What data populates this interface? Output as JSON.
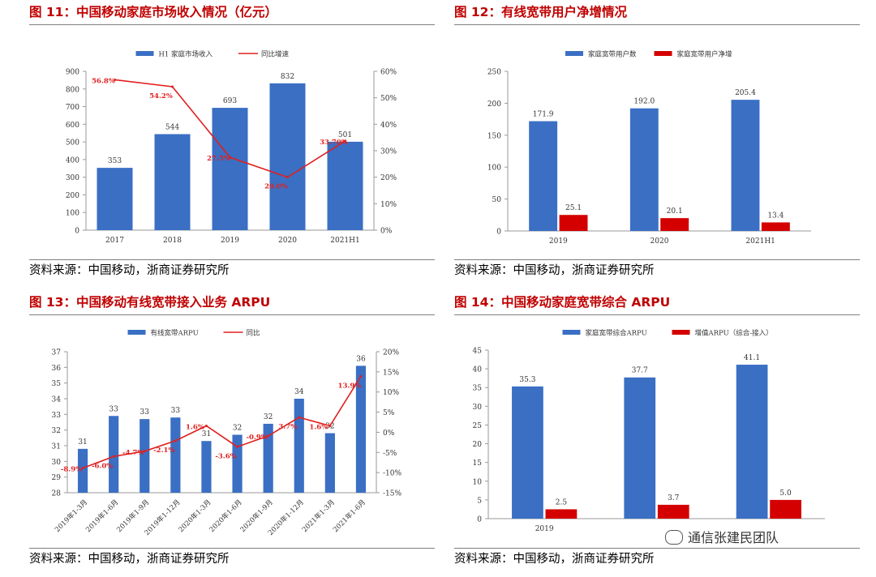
{
  "watermark": "通信张建民团队",
  "panels": [
    {
      "id": "fig11",
      "title": "图 11：中国移动家庭市场收入情况（亿元）",
      "source": "资料来源：中国移动，浙商证券研究所"
    },
    {
      "id": "fig12",
      "title": "图 12：有线宽带用户净增情况",
      "source": "资料来源：中国移动，浙商证券研究所"
    },
    {
      "id": "fig13",
      "title": "图 13：中国移动有线宽带接入业务 ARPU",
      "source": "资料来源：中国移动，浙商证券研究所"
    },
    {
      "id": "fig14",
      "title": "图 14：中国移动家庭宽带综合 ARPU",
      "source": "资料来源：中国移动，浙商证券研究所"
    }
  ],
  "chart_data": [
    {
      "type": "bar",
      "categories": [
        "2017",
        "2018",
        "2019",
        "2020",
        "2021H1"
      ],
      "series": [
        {
          "name": "H1 家庭市场收入",
          "kind": "bar",
          "axis": "left",
          "color": "#3a6fc4",
          "values": [
            353,
            544,
            693,
            832,
            501
          ],
          "labels": [
            "353",
            "544",
            "693",
            "832",
            "501"
          ]
        },
        {
          "name": "同比增速",
          "kind": "line",
          "axis": "right",
          "color": "#e0201f",
          "values": [
            56.8,
            54.2,
            27.5,
            20.0,
            33.7
          ],
          "labels": [
            "56.8%",
            "54.2%",
            "27.5%",
            "20.0%",
            "33.70%"
          ]
        }
      ],
      "ylim": [
        0,
        900
      ],
      "yticks": [
        "0",
        "100",
        "200",
        "300",
        "400",
        "500",
        "600",
        "700",
        "800",
        "900"
      ],
      "y2lim": [
        0,
        60
      ],
      "y2ticks": [
        "0%",
        "10%",
        "20%",
        "30%",
        "40%",
        "50%",
        "60%"
      ],
      "legend": "top-center"
    },
    {
      "type": "bar",
      "categories": [
        "2019",
        "2020",
        "2021H1"
      ],
      "series": [
        {
          "name": "家庭宽带用户数",
          "kind": "bar",
          "color": "#3a6fc4",
          "values": [
            171.9,
            192.0,
            205.4
          ],
          "labels": [
            "171.9",
            "192.0",
            "205.4"
          ]
        },
        {
          "name": "家庭宽带用户净增",
          "kind": "bar",
          "color": "#d40000",
          "values": [
            25.1,
            20.1,
            13.4
          ],
          "labels": [
            "25.1",
            "20.1",
            "13.4"
          ]
        }
      ],
      "ylim": [
        0,
        250
      ],
      "yticks": [
        "0",
        "50",
        "100",
        "150",
        "200",
        "250"
      ],
      "legend": "top-center"
    },
    {
      "type": "bar",
      "categories": [
        "2019年1-3月",
        "2019年1-6月",
        "2019年1-9月",
        "2019年1-12月",
        "2020年1-3月",
        "2020年1-6月",
        "2020年1-9月",
        "2020年1-12月",
        "2021年1-3月",
        "2021年1-6月"
      ],
      "series": [
        {
          "name": "有线宽带ARPU",
          "kind": "bar",
          "axis": "left",
          "color": "#3a6fc4",
          "values": [
            30.8,
            32.9,
            32.7,
            32.8,
            31.3,
            31.7,
            32.4,
            34.0,
            31.8,
            36.1
          ],
          "labels": [
            "31",
            "33",
            "33",
            "33",
            "31",
            "32",
            "32",
            "34",
            "32",
            "36"
          ]
        },
        {
          "name": "同比",
          "kind": "line",
          "axis": "right",
          "color": "#e0201f",
          "values": [
            -8.9,
            -6.0,
            -4.7,
            -2.1,
            1.6,
            -3.6,
            -0.9,
            3.7,
            1.6,
            13.9
          ],
          "labels": [
            "-8.9%",
            "-6.0%",
            "-4.7%",
            "-2.1%",
            "1.6%",
            "-3.6%",
            "-0.9%",
            "3.7%",
            "1.6%",
            "13.9%"
          ]
        }
      ],
      "ylim": [
        28,
        37
      ],
      "yticks": [
        "28",
        "29",
        "30",
        "31",
        "32",
        "33",
        "34",
        "35",
        "36",
        "37"
      ],
      "y2lim": [
        -15,
        20
      ],
      "y2ticks": [
        "-15%",
        "-10%",
        "-5%",
        "0%",
        "5%",
        "10%",
        "15%",
        "20%"
      ],
      "legend": "top-center"
    },
    {
      "type": "bar",
      "categories": [
        "2019",
        "",
        ""
      ],
      "series": [
        {
          "name": "家庭宽带综合ARPU",
          "kind": "bar",
          "color": "#3a6fc4",
          "values": [
            35.3,
            37.7,
            41.1
          ],
          "labels": [
            "35.3",
            "37.7",
            "41.1"
          ]
        },
        {
          "name": "增值ARPU（综合-接入）",
          "kind": "bar",
          "color": "#d40000",
          "values": [
            2.5,
            3.7,
            5.0
          ],
          "labels": [
            "2.5",
            "3.7",
            "5.0"
          ]
        }
      ],
      "ylim": [
        0,
        45
      ],
      "yticks": [
        "0",
        "5",
        "10",
        "15",
        "20",
        "25",
        "30",
        "35",
        "40",
        "45"
      ],
      "legend": "top-center"
    }
  ]
}
